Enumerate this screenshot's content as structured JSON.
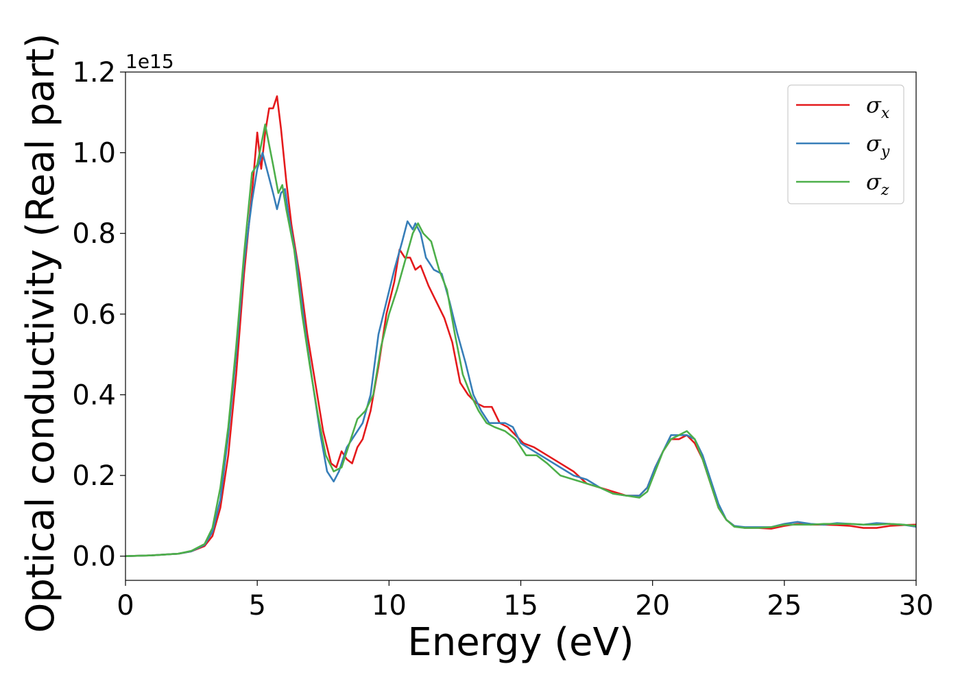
{
  "chart_data": {
    "type": "line",
    "xlabel": "Energy (eV)",
    "ylabel": "Optical conductivity (Real part)",
    "y_offset_label": "1e15",
    "xlim": [
      0,
      30
    ],
    "ylim": [
      -0.06,
      1.2
    ],
    "x_ticks": [
      0,
      5,
      10,
      15,
      20,
      25,
      30
    ],
    "x_tick_labels": [
      "0",
      "5",
      "10",
      "15",
      "20",
      "25",
      "30"
    ],
    "y_ticks": [
      0.0,
      0.2,
      0.4,
      0.6,
      0.8,
      1.0,
      1.2
    ],
    "y_tick_labels": [
      "0.0",
      "0.2",
      "0.4",
      "0.6",
      "0.8",
      "1.0",
      "1.2"
    ],
    "grid": false,
    "legend_position": "top-right",
    "series": [
      {
        "name": "σx",
        "symbol": "σ",
        "subscript": "x",
        "color": "#e41a1c",
        "points": [
          [
            0,
            0
          ],
          [
            1,
            0.002
          ],
          [
            2,
            0.006
          ],
          [
            2.5,
            0.012
          ],
          [
            3,
            0.025
          ],
          [
            3.3,
            0.05
          ],
          [
            3.6,
            0.12
          ],
          [
            3.9,
            0.25
          ],
          [
            4.2,
            0.45
          ],
          [
            4.5,
            0.7
          ],
          [
            4.8,
            0.9
          ],
          [
            5.0,
            1.05
          ],
          [
            5.15,
            0.96
          ],
          [
            5.3,
            1.05
          ],
          [
            5.45,
            1.11
          ],
          [
            5.6,
            1.11
          ],
          [
            5.75,
            1.14
          ],
          [
            5.9,
            1.06
          ],
          [
            6.1,
            0.93
          ],
          [
            6.3,
            0.82
          ],
          [
            6.6,
            0.7
          ],
          [
            6.9,
            0.55
          ],
          [
            7.2,
            0.43
          ],
          [
            7.5,
            0.31
          ],
          [
            7.8,
            0.23
          ],
          [
            8.0,
            0.22
          ],
          [
            8.2,
            0.26
          ],
          [
            8.4,
            0.24
          ],
          [
            8.6,
            0.23
          ],
          [
            8.8,
            0.27
          ],
          [
            9.0,
            0.29
          ],
          [
            9.3,
            0.36
          ],
          [
            9.6,
            0.47
          ],
          [
            9.9,
            0.6
          ],
          [
            10.2,
            0.68
          ],
          [
            10.4,
            0.76
          ],
          [
            10.6,
            0.74
          ],
          [
            10.8,
            0.74
          ],
          [
            11.0,
            0.71
          ],
          [
            11.2,
            0.72
          ],
          [
            11.5,
            0.67
          ],
          [
            11.8,
            0.63
          ],
          [
            12.1,
            0.59
          ],
          [
            12.4,
            0.53
          ],
          [
            12.7,
            0.43
          ],
          [
            13.0,
            0.4
          ],
          [
            13.3,
            0.38
          ],
          [
            13.6,
            0.37
          ],
          [
            13.9,
            0.37
          ],
          [
            14.2,
            0.33
          ],
          [
            14.5,
            0.32
          ],
          [
            14.8,
            0.3
          ],
          [
            15.1,
            0.28
          ],
          [
            15.5,
            0.27
          ],
          [
            16.0,
            0.25
          ],
          [
            16.5,
            0.23
          ],
          [
            17.0,
            0.21
          ],
          [
            17.5,
            0.18
          ],
          [
            18.0,
            0.17
          ],
          [
            18.5,
            0.16
          ],
          [
            19.0,
            0.15
          ],
          [
            19.5,
            0.15
          ],
          [
            19.8,
            0.17
          ],
          [
            20.1,
            0.22
          ],
          [
            20.4,
            0.26
          ],
          [
            20.7,
            0.29
          ],
          [
            21.0,
            0.29
          ],
          [
            21.3,
            0.3
          ],
          [
            21.6,
            0.28
          ],
          [
            21.9,
            0.24
          ],
          [
            22.2,
            0.18
          ],
          [
            22.5,
            0.12
          ],
          [
            22.8,
            0.09
          ],
          [
            23.1,
            0.075
          ],
          [
            23.5,
            0.07
          ],
          [
            24.0,
            0.07
          ],
          [
            24.5,
            0.068
          ],
          [
            25.0,
            0.075
          ],
          [
            25.5,
            0.08
          ],
          [
            26.0,
            0.078
          ],
          [
            26.5,
            0.078
          ],
          [
            27.0,
            0.077
          ],
          [
            27.5,
            0.075
          ],
          [
            28.0,
            0.07
          ],
          [
            28.5,
            0.07
          ],
          [
            29.0,
            0.075
          ],
          [
            29.5,
            0.077
          ],
          [
            30.0,
            0.078
          ]
        ]
      },
      {
        "name": "σy",
        "symbol": "σ",
        "subscript": "y",
        "color": "#377eb8",
        "points": [
          [
            0,
            0
          ],
          [
            1,
            0.002
          ],
          [
            2,
            0.006
          ],
          [
            2.5,
            0.012
          ],
          [
            3,
            0.028
          ],
          [
            3.3,
            0.06
          ],
          [
            3.6,
            0.14
          ],
          [
            3.9,
            0.3
          ],
          [
            4.2,
            0.5
          ],
          [
            4.5,
            0.73
          ],
          [
            4.8,
            0.88
          ],
          [
            5.0,
            0.96
          ],
          [
            5.2,
            1.0
          ],
          [
            5.4,
            0.95
          ],
          [
            5.6,
            0.9
          ],
          [
            5.75,
            0.86
          ],
          [
            5.9,
            0.9
          ],
          [
            6.05,
            0.91
          ],
          [
            6.2,
            0.84
          ],
          [
            6.5,
            0.73
          ],
          [
            6.8,
            0.57
          ],
          [
            7.1,
            0.43
          ],
          [
            7.4,
            0.3
          ],
          [
            7.65,
            0.21
          ],
          [
            7.9,
            0.185
          ],
          [
            8.1,
            0.21
          ],
          [
            8.4,
            0.27
          ],
          [
            8.7,
            0.3
          ],
          [
            9.0,
            0.33
          ],
          [
            9.3,
            0.4
          ],
          [
            9.6,
            0.55
          ],
          [
            9.9,
            0.63
          ],
          [
            10.2,
            0.71
          ],
          [
            10.5,
            0.78
          ],
          [
            10.7,
            0.83
          ],
          [
            10.9,
            0.81
          ],
          [
            11.0,
            0.825
          ],
          [
            11.2,
            0.8
          ],
          [
            11.4,
            0.74
          ],
          [
            11.7,
            0.71
          ],
          [
            12.0,
            0.7
          ],
          [
            12.3,
            0.63
          ],
          [
            12.6,
            0.55
          ],
          [
            12.9,
            0.48
          ],
          [
            13.2,
            0.4
          ],
          [
            13.5,
            0.36
          ],
          [
            13.8,
            0.33
          ],
          [
            14.1,
            0.33
          ],
          [
            14.4,
            0.33
          ],
          [
            14.7,
            0.32
          ],
          [
            15.0,
            0.28
          ],
          [
            15.5,
            0.26
          ],
          [
            16.0,
            0.24
          ],
          [
            16.5,
            0.22
          ],
          [
            17.0,
            0.2
          ],
          [
            17.5,
            0.19
          ],
          [
            18.0,
            0.17
          ],
          [
            18.5,
            0.155
          ],
          [
            19.0,
            0.15
          ],
          [
            19.5,
            0.15
          ],
          [
            19.8,
            0.17
          ],
          [
            20.1,
            0.22
          ],
          [
            20.4,
            0.26
          ],
          [
            20.7,
            0.3
          ],
          [
            21.0,
            0.3
          ],
          [
            21.3,
            0.3
          ],
          [
            21.6,
            0.29
          ],
          [
            21.9,
            0.25
          ],
          [
            22.2,
            0.19
          ],
          [
            22.5,
            0.13
          ],
          [
            22.8,
            0.09
          ],
          [
            23.1,
            0.075
          ],
          [
            23.5,
            0.072
          ],
          [
            24.0,
            0.072
          ],
          [
            24.5,
            0.072
          ],
          [
            25.0,
            0.08
          ],
          [
            25.5,
            0.085
          ],
          [
            26.0,
            0.08
          ],
          [
            26.5,
            0.078
          ],
          [
            27.0,
            0.082
          ],
          [
            27.5,
            0.08
          ],
          [
            28.0,
            0.078
          ],
          [
            28.5,
            0.082
          ],
          [
            29.0,
            0.08
          ],
          [
            29.5,
            0.078
          ],
          [
            30.0,
            0.073
          ]
        ]
      },
      {
        "name": "σz",
        "symbol": "σ",
        "subscript": "z",
        "color": "#4daf4a",
        "points": [
          [
            0,
            0
          ],
          [
            1,
            0.002
          ],
          [
            2,
            0.006
          ],
          [
            2.5,
            0.013
          ],
          [
            3,
            0.03
          ],
          [
            3.3,
            0.07
          ],
          [
            3.6,
            0.17
          ],
          [
            3.9,
            0.32
          ],
          [
            4.2,
            0.52
          ],
          [
            4.5,
            0.75
          ],
          [
            4.8,
            0.95
          ],
          [
            5.0,
            0.97
          ],
          [
            5.15,
            1.02
          ],
          [
            5.3,
            1.07
          ],
          [
            5.45,
            1.02
          ],
          [
            5.6,
            0.97
          ],
          [
            5.8,
            0.9
          ],
          [
            5.95,
            0.92
          ],
          [
            6.1,
            0.86
          ],
          [
            6.4,
            0.76
          ],
          [
            6.7,
            0.6
          ],
          [
            7.0,
            0.47
          ],
          [
            7.3,
            0.35
          ],
          [
            7.6,
            0.25
          ],
          [
            7.9,
            0.21
          ],
          [
            8.2,
            0.22
          ],
          [
            8.5,
            0.28
          ],
          [
            8.8,
            0.34
          ],
          [
            9.1,
            0.36
          ],
          [
            9.4,
            0.4
          ],
          [
            9.7,
            0.52
          ],
          [
            10.0,
            0.6
          ],
          [
            10.3,
            0.66
          ],
          [
            10.6,
            0.73
          ],
          [
            10.9,
            0.8
          ],
          [
            11.1,
            0.825
          ],
          [
            11.3,
            0.8
          ],
          [
            11.6,
            0.78
          ],
          [
            11.9,
            0.71
          ],
          [
            12.2,
            0.66
          ],
          [
            12.5,
            0.55
          ],
          [
            12.8,
            0.45
          ],
          [
            13.1,
            0.4
          ],
          [
            13.4,
            0.36
          ],
          [
            13.7,
            0.33
          ],
          [
            14.0,
            0.32
          ],
          [
            14.4,
            0.31
          ],
          [
            14.8,
            0.29
          ],
          [
            15.2,
            0.25
          ],
          [
            15.6,
            0.25
          ],
          [
            16.0,
            0.23
          ],
          [
            16.5,
            0.2
          ],
          [
            17.0,
            0.19
          ],
          [
            17.5,
            0.18
          ],
          [
            18.0,
            0.17
          ],
          [
            18.5,
            0.155
          ],
          [
            19.0,
            0.15
          ],
          [
            19.5,
            0.145
          ],
          [
            19.8,
            0.16
          ],
          [
            20.1,
            0.21
          ],
          [
            20.4,
            0.26
          ],
          [
            20.7,
            0.29
          ],
          [
            21.0,
            0.3
          ],
          [
            21.3,
            0.31
          ],
          [
            21.6,
            0.29
          ],
          [
            21.9,
            0.24
          ],
          [
            22.2,
            0.18
          ],
          [
            22.5,
            0.12
          ],
          [
            22.8,
            0.09
          ],
          [
            23.1,
            0.073
          ],
          [
            23.5,
            0.07
          ],
          [
            24.0,
            0.07
          ],
          [
            24.5,
            0.072
          ],
          [
            25.0,
            0.078
          ],
          [
            25.5,
            0.078
          ],
          [
            26.0,
            0.078
          ],
          [
            26.5,
            0.08
          ],
          [
            27.0,
            0.08
          ],
          [
            27.5,
            0.08
          ],
          [
            28.0,
            0.078
          ],
          [
            28.5,
            0.078
          ],
          [
            29.0,
            0.08
          ],
          [
            29.5,
            0.078
          ],
          [
            30.0,
            0.075
          ]
        ]
      }
    ]
  }
}
